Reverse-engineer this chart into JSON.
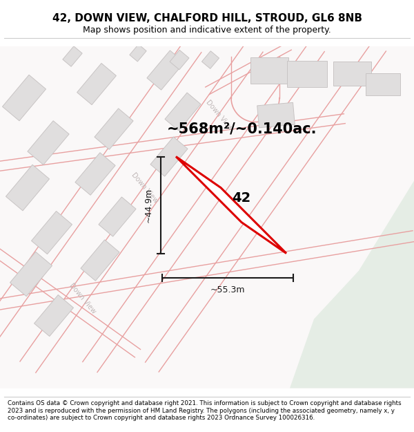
{
  "title_line1": "42, DOWN VIEW, CHALFORD HILL, STROUD, GL6 8NB",
  "title_line2": "Map shows position and indicative extent of the property.",
  "area_text": "~568m²/~0.140ac.",
  "label_42": "42",
  "dim_height": "~44.9m",
  "dim_width": "~55.3m",
  "copyright_text": "Contains OS data © Crown copyright and database right 2021. This information is subject to Crown copyright and database rights 2023 and is reproduced with the permission of HM Land Registry. The polygons (including the associated geometry, namely x, y co-ordinates) are subject to Crown copyright and database rights 2023 Ordnance Survey 100026316.",
  "map_bg": "#faf8f8",
  "road_color": "#e8a0a0",
  "road_fill": "#faf8f8",
  "building_color": "#e0dede",
  "building_edge": "#c8c4c4",
  "property_color": "#dd0000",
  "dim_color": "#1a1a1a",
  "road_label_color": "#bbbbbb",
  "green_area": "#e5ede5"
}
